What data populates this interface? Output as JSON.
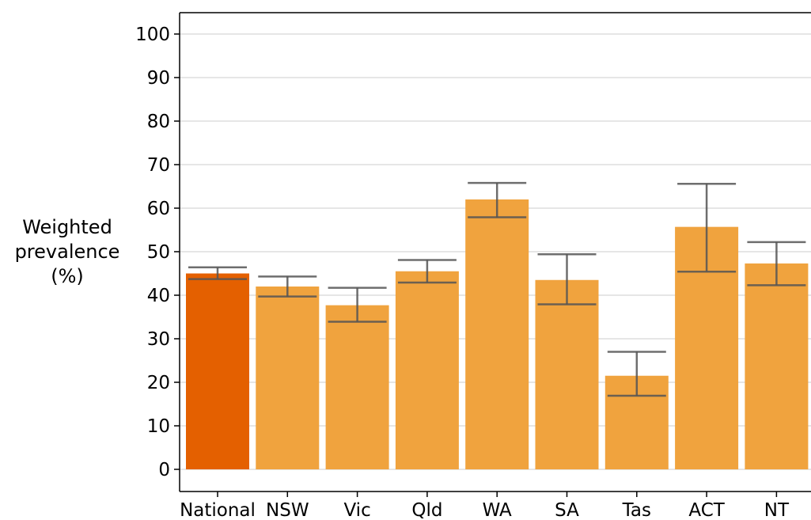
{
  "chart_data": {
    "type": "bar",
    "title": "",
    "xlabel": "",
    "ylabel_lines": [
      "Weighted",
      "prevalence",
      "(%)"
    ],
    "categories": [
      "National",
      "NSW",
      "Vic",
      "Qld",
      "WA",
      "SA",
      "Tas",
      "ACT",
      "NT"
    ],
    "values": [
      45.0,
      42.0,
      37.7,
      45.5,
      62.0,
      43.5,
      21.5,
      55.7,
      47.3
    ],
    "ci_lower": [
      43.7,
      39.7,
      33.9,
      42.9,
      57.9,
      37.9,
      16.9,
      45.4,
      42.3
    ],
    "ci_upper": [
      46.4,
      44.3,
      41.7,
      48.1,
      65.8,
      49.4,
      27.0,
      65.6,
      52.2
    ],
    "highlight_index": 0,
    "ylim": [
      -5,
      105
    ],
    "yticks": [
      0,
      10,
      20,
      30,
      40,
      50,
      60,
      70,
      80,
      90,
      100
    ],
    "grid": true,
    "colors": {
      "highlight": "#e46000",
      "bar": "#f0a33e",
      "error_bar": "#555555",
      "grid": "#cccccc",
      "axis": "#000000"
    }
  }
}
